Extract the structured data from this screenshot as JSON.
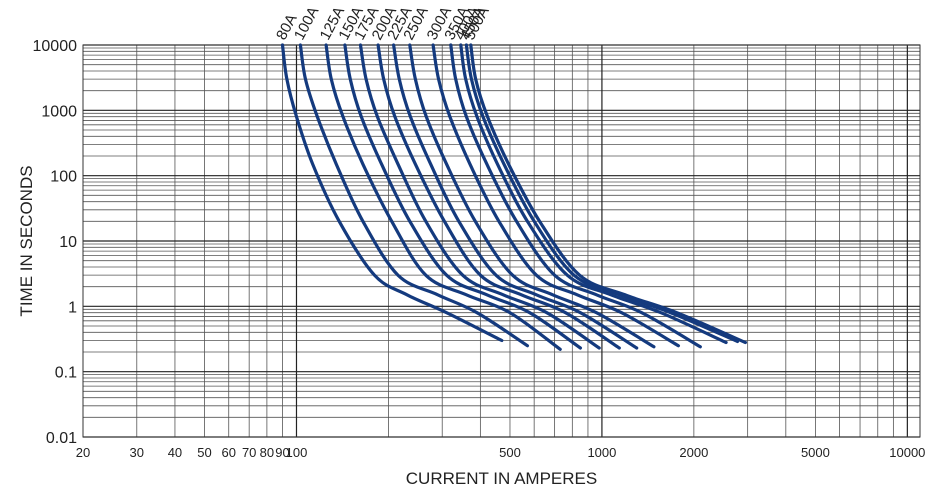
{
  "chart_data": {
    "type": "line",
    "xscale": "log",
    "yscale": "log",
    "xlim": [
      20,
      11000
    ],
    "ylim": [
      0.01,
      10000
    ],
    "xlabel": "CURRENT IN AMPERES",
    "ylabel": "TIME IN SECONDS",
    "x_tick_labels": [
      "20",
      "30",
      "40",
      "50",
      "60",
      "70",
      "80",
      "90",
      "100",
      "500",
      "1000",
      "2000",
      "5000",
      "10000"
    ],
    "y_tick_labels": [
      "10000",
      "1000",
      "100",
      "10",
      "1",
      "0.1",
      "0.01"
    ],
    "grid": true,
    "line_color": "#143a7e",
    "series": [
      {
        "name": "80A",
        "x": [
          90,
          93,
          100,
          113,
          138,
          180,
          230,
          310,
          470
        ],
        "y": [
          10000,
          3000,
          800,
          150,
          20,
          3,
          1.5,
          0.8,
          0.3
        ]
      },
      {
        "name": "100A",
        "x": [
          103,
          107,
          117,
          135,
          165,
          215,
          290,
          390,
          570
        ],
        "y": [
          10000,
          3000,
          800,
          150,
          20,
          3,
          1.5,
          0.8,
          0.25
        ]
      },
      {
        "name": "125A",
        "x": [
          125,
          130,
          142,
          165,
          205,
          265,
          360,
          500,
          730
        ],
        "y": [
          10000,
          3000,
          800,
          150,
          20,
          3,
          1.5,
          0.8,
          0.22
        ]
      },
      {
        "name": "150A",
        "x": [
          144,
          150,
          163,
          190,
          235,
          310,
          420,
          580,
          850
        ],
        "y": [
          10000,
          3000,
          800,
          150,
          20,
          3,
          1.5,
          0.8,
          0.23
        ]
      },
      {
        "name": "175A",
        "x": [
          162,
          169,
          184,
          215,
          265,
          350,
          475,
          660,
          980
        ],
        "y": [
          10000,
          3000,
          800,
          150,
          20,
          3,
          1.5,
          0.8,
          0.23
        ]
      },
      {
        "name": "200A",
        "x": [
          185,
          193,
          210,
          245,
          305,
          400,
          545,
          760,
          1140
        ],
        "y": [
          10000,
          3000,
          800,
          150,
          20,
          3,
          1.5,
          0.8,
          0.23
        ]
      },
      {
        "name": "225A",
        "x": [
          208,
          217,
          236,
          275,
          340,
          450,
          610,
          850,
          1300
        ],
        "y": [
          10000,
          3000,
          800,
          150,
          20,
          3,
          1.5,
          0.8,
          0.23
        ]
      },
      {
        "name": "250A",
        "x": [
          235,
          245,
          266,
          310,
          385,
          510,
          690,
          960,
          1480
        ],
        "y": [
          10000,
          3000,
          800,
          150,
          20,
          3,
          1.5,
          0.8,
          0.24
        ]
      },
      {
        "name": "300A",
        "x": [
          280,
          292,
          318,
          370,
          460,
          610,
          830,
          1160,
          1780
        ],
        "y": [
          10000,
          3000,
          800,
          150,
          20,
          3,
          1.5,
          0.8,
          0.25
        ]
      },
      {
        "name": "350A",
        "x": [
          320,
          332,
          360,
          420,
          525,
          700,
          960,
          1350,
          2100
        ],
        "y": [
          10000,
          3000,
          800,
          150,
          20,
          3,
          1.5,
          0.8,
          0.24
        ]
      },
      {
        "name": "400A",
        "x": [
          345,
          358,
          390,
          455,
          570,
          770,
          1070,
          1560,
          2550
        ],
        "y": [
          10000,
          3000,
          800,
          150,
          20,
          3,
          1.5,
          0.8,
          0.28
        ]
      },
      {
        "name": "450A",
        "x": [
          360,
          374,
          408,
          478,
          600,
          810,
          1140,
          1680,
          2780
        ],
        "y": [
          10000,
          3000,
          800,
          150,
          20,
          3,
          1.5,
          0.8,
          0.29
        ]
      },
      {
        "name": "500A",
        "x": [
          372,
          386,
          422,
          495,
          625,
          845,
          1190,
          1760,
          2950
        ],
        "y": [
          10000,
          3000,
          800,
          150,
          20,
          3,
          1.5,
          0.8,
          0.28
        ]
      }
    ]
  }
}
